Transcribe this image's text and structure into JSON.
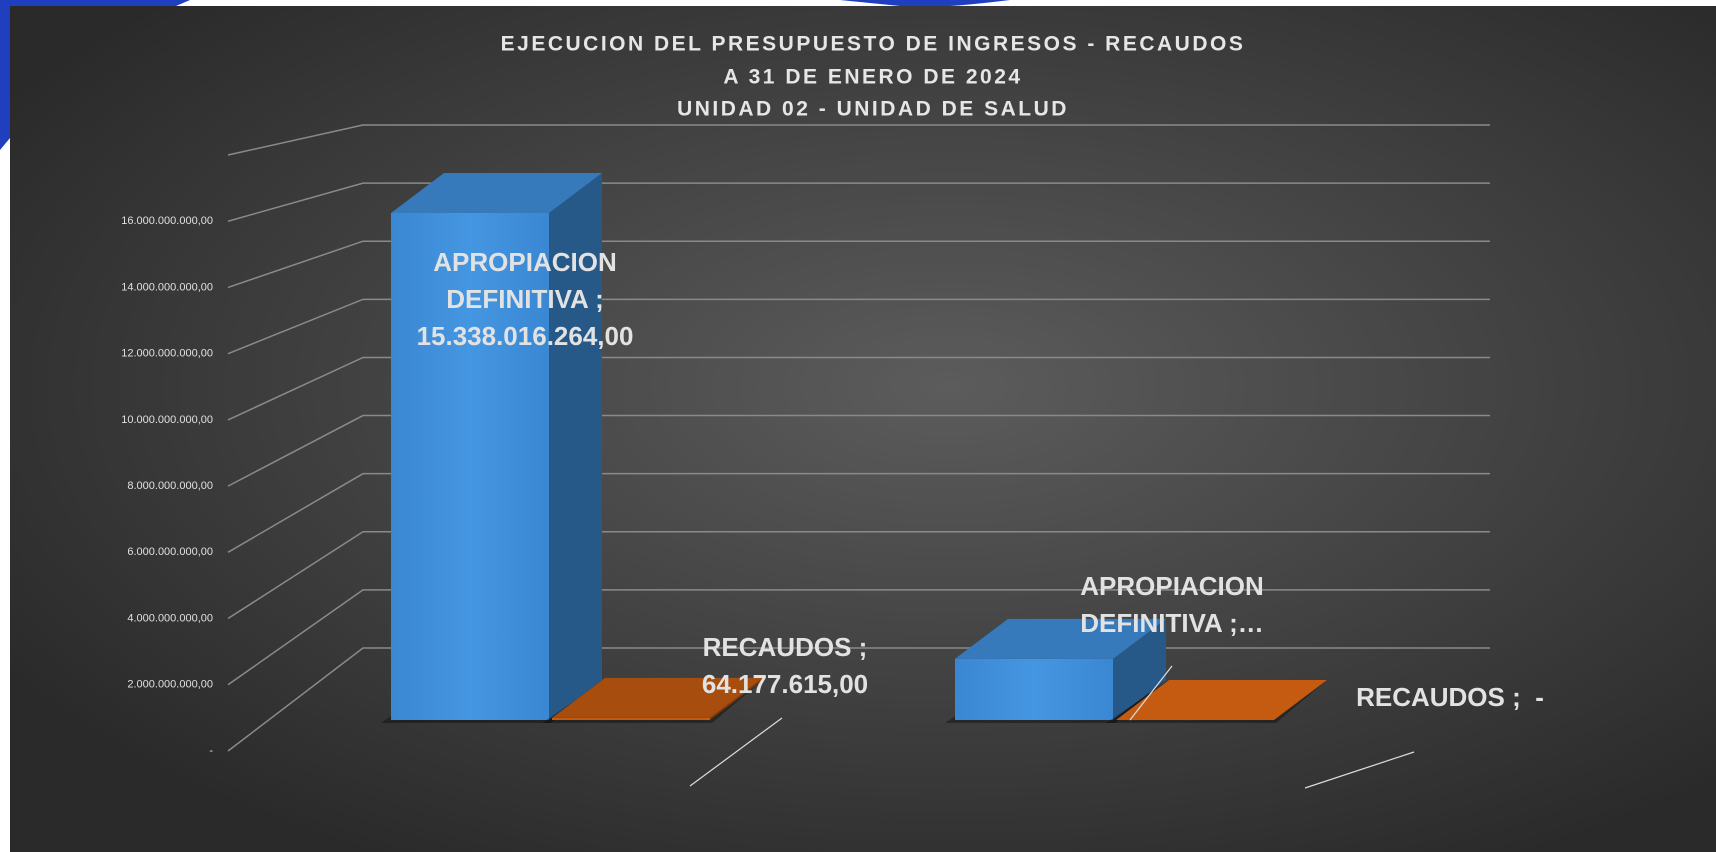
{
  "chart_data": {
    "type": "bar3d",
    "title": [
      "EJECUCION DEL PRESUPUESTO DE INGRESOS - RECAUDOS",
      "A 31 DE ENERO DE 2024",
      "UNIDAD 02 - UNIDAD DE SALUD"
    ],
    "categories": [
      null,
      null
    ],
    "series": [
      {
        "name": "APROPIACION DEFINITIVA",
        "color": "#3f8fdc",
        "values": [
          15338016264,
          1850000000
        ],
        "value_labels": [
          "15.338.016.264,00",
          "…"
        ]
      },
      {
        "name": "RECAUDOS",
        "color": "#c55a11",
        "values": [
          64177615,
          0
        ],
        "value_labels": [
          "64.177.615,00",
          "-"
        ]
      }
    ],
    "label_separator": ";",
    "ylim": [
      0,
      18000000000
    ],
    "yticks": [
      {
        "value": 0,
        "label": "-"
      },
      {
        "value": 2000000000,
        "label": "2.000.000.000,00"
      },
      {
        "value": 4000000000,
        "label": "4.000.000.000,00"
      },
      {
        "value": 6000000000,
        "label": "6.000.000.000,00"
      },
      {
        "value": 8000000000,
        "label": "8.000.000.000,00"
      },
      {
        "value": 10000000000,
        "label": "10.000.000.000,00"
      },
      {
        "value": 12000000000,
        "label": "12.000.000.000,00"
      },
      {
        "value": 14000000000,
        "label": "14.000.000.000,00"
      },
      {
        "value": 16000000000,
        "label": "16.000.000.000,00"
      }
    ],
    "grid": true
  }
}
